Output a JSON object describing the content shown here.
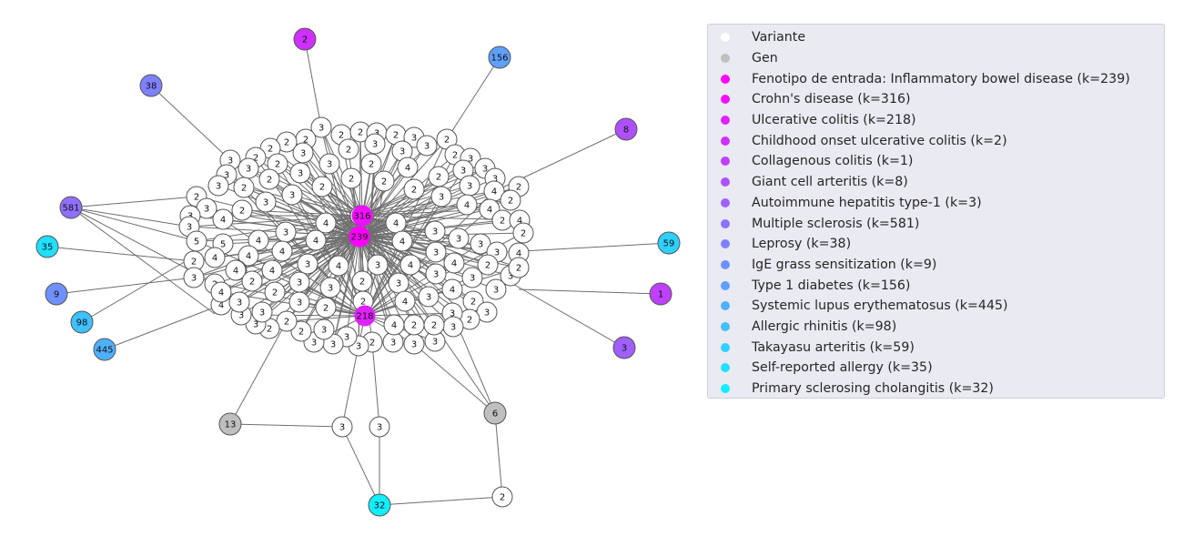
{
  "legend": {
    "items": [
      {
        "label": "Variante",
        "color": "#ffffff",
        "type": "variant"
      },
      {
        "label": "Gen",
        "color": "#bfbfbf",
        "type": "gene"
      },
      {
        "label": "Fenotipo de entrada: Inflammatory bowel disease (k=239)",
        "color": "#ff00ff",
        "type": "input-phenotype"
      },
      {
        "label": "Crohn's disease (k=316)",
        "color": "#ef10ff",
        "type": "phenotype"
      },
      {
        "label": "Ulcerative colitis (k=218)",
        "color": "#df20ff",
        "type": "phenotype"
      },
      {
        "label": "Childhood onset ulcerative colitis (k=2)",
        "color": "#cf30ff",
        "type": "phenotype"
      },
      {
        "label": "Collagenous colitis (k=1)",
        "color": "#bf40ff",
        "type": "phenotype"
      },
      {
        "label": "Giant cell arteritis (k=8)",
        "color": "#af50ff",
        "type": "phenotype"
      },
      {
        "label": "Autoimmune hepatitis type-1 (k=3)",
        "color": "#9f60ff",
        "type": "phenotype"
      },
      {
        "label": "Multiple sclerosis (k=581)",
        "color": "#8f70ff",
        "type": "phenotype"
      },
      {
        "label": "Leprosy (k=38)",
        "color": "#7f80ff",
        "type": "phenotype"
      },
      {
        "label": "IgE grass sensitization (k=9)",
        "color": "#6f90ff",
        "type": "phenotype"
      },
      {
        "label": "Type 1 diabetes (k=156)",
        "color": "#5fa0ff",
        "type": "phenotype"
      },
      {
        "label": "Systemic lupus erythematosus (k=445)",
        "color": "#4fb0ff",
        "type": "phenotype"
      },
      {
        "label": "Allergic rhinitis (k=98)",
        "color": "#3fc0ff",
        "type": "phenotype"
      },
      {
        "label": "Takayasu arteritis (k=59)",
        "color": "#2fd0ff",
        "type": "phenotype"
      },
      {
        "label": "Self-reported allergy (k=35)",
        "color": "#1fe0ff",
        "type": "phenotype"
      },
      {
        "label": "Primary sclerosing cholangitis (k=32)",
        "color": "#10efff",
        "type": "phenotype"
      }
    ]
  },
  "graph": {
    "hubs": [
      {
        "id": "ibd",
        "label": "239",
        "color": "#ff00ff"
      },
      {
        "id": "crohn",
        "label": "316",
        "color": "#ef10ff"
      },
      {
        "id": "uc",
        "label": "218",
        "color": "#df20ff"
      }
    ],
    "phenotypes": [
      {
        "id": "childhood-uc",
        "label": "2",
        "color": "#cf30ff"
      },
      {
        "id": "collagenous",
        "label": "1",
        "color": "#bf40ff"
      },
      {
        "id": "giant-cell",
        "label": "8",
        "color": "#af50ff"
      },
      {
        "id": "aih1",
        "label": "3",
        "color": "#9f60ff"
      },
      {
        "id": "ms",
        "label": "581",
        "color": "#8f70ff"
      },
      {
        "id": "leprosy",
        "label": "38",
        "color": "#7f80ff"
      },
      {
        "id": "ige",
        "label": "9",
        "color": "#6f90ff"
      },
      {
        "id": "t1d",
        "label": "156",
        "color": "#5fa0ff"
      },
      {
        "id": "sle",
        "label": "445",
        "color": "#4fb0ff"
      },
      {
        "id": "rhinitis",
        "label": "98",
        "color": "#3fc0ff"
      },
      {
        "id": "takayasu",
        "label": "59",
        "color": "#2fd0ff"
      },
      {
        "id": "allergy",
        "label": "35",
        "color": "#1fe0ff"
      },
      {
        "id": "psc",
        "label": "32",
        "color": "#10efff"
      }
    ],
    "genes": [
      {
        "id": "gene-a",
        "label": "13"
      },
      {
        "id": "gene-b",
        "label": "6"
      }
    ],
    "periphery_variants": [
      {
        "id": "v-a",
        "label": "3"
      },
      {
        "id": "v-b",
        "label": "3"
      },
      {
        "id": "v-c",
        "label": "2"
      }
    ],
    "peripheral_edges": [
      [
        "childhood-uc",
        "core"
      ],
      [
        "t1d",
        "core"
      ],
      [
        "giant-cell",
        "core"
      ],
      [
        "leprosy",
        "core"
      ],
      [
        "takayasu",
        "core"
      ],
      [
        "collagenous",
        "core"
      ],
      [
        "aih1",
        "core"
      ],
      [
        "allergy",
        "core"
      ],
      [
        "ige",
        "core"
      ],
      [
        "rhinitis",
        "core"
      ],
      [
        "sle",
        "core"
      ],
      [
        "ms",
        "core"
      ],
      [
        "ms",
        "core"
      ],
      [
        "ms",
        "core"
      ],
      [
        "ms",
        "core"
      ],
      [
        "ms",
        "core"
      ],
      [
        "gene-a",
        "v-a"
      ],
      [
        "gene-a",
        "core"
      ],
      [
        "v-a",
        "psc"
      ],
      [
        "v-b",
        "psc"
      ],
      [
        "v-c",
        "psc"
      ],
      [
        "gene-b",
        "v-c"
      ],
      [
        "gene-b",
        "core"
      ],
      [
        "gene-b",
        "core"
      ],
      [
        "gene-b",
        "core"
      ],
      [
        "v-a",
        "core"
      ],
      [
        "v-b",
        "core"
      ]
    ],
    "core_variant_labels": [
      "3",
      "2",
      "2",
      "3",
      "2",
      "3",
      "3",
      "2",
      "3",
      "2",
      "2",
      "2",
      "3",
      "3",
      "2",
      "2",
      "3",
      "3",
      "2",
      "2",
      "3",
      "2",
      "4",
      "3",
      "3",
      "2",
      "3",
      "3",
      "3",
      "3",
      "2",
      "2",
      "2",
      "2",
      "3",
      "3",
      "4",
      "2",
      "2",
      "3",
      "2",
      "2",
      "3",
      "3",
      "2",
      "3",
      "2",
      "4",
      "4",
      "2",
      "4",
      "2",
      "3",
      "4",
      "4",
      "4",
      "3",
      "3",
      "4",
      "4",
      "4",
      "3",
      "3",
      "3",
      "3",
      "4",
      "5",
      "5",
      "4",
      "4",
      "3",
      "4",
      "3",
      "4",
      "3",
      "4",
      "3",
      "2",
      "3",
      "4",
      "3",
      "3",
      "2",
      "3",
      "2",
      "3",
      "2",
      "3",
      "2",
      "3",
      "3",
      "3",
      "2",
      "3",
      "3",
      "2",
      "3",
      "3",
      "3",
      "3",
      "2",
      "3",
      "2",
      "2",
      "3",
      "3",
      "4",
      "2",
      "4",
      "4",
      "3",
      "2",
      "3",
      "2",
      "3",
      "3",
      "3",
      "2",
      "2",
      "2",
      "3",
      "4",
      "3",
      "4",
      "4",
      "4",
      "2",
      "3"
    ]
  }
}
